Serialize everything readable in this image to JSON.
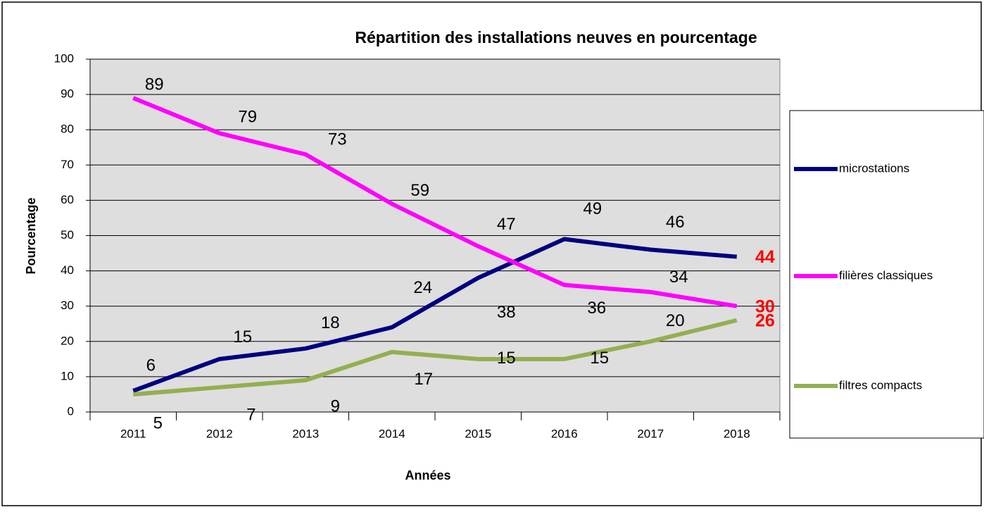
{
  "chart_data": {
    "type": "line",
    "title": "Répartition des installations neuves en pourcentage",
    "x_label": "Années",
    "y_label": "Pourcentage",
    "categories": [
      "2011",
      "2012",
      "2013",
      "2014",
      "2015",
      "2016",
      "2017",
      "2018"
    ],
    "series": [
      {
        "name": "microstations",
        "color": "#000080",
        "values": [
          6,
          15,
          18,
          24,
          38,
          49,
          46,
          44
        ]
      },
      {
        "name": "filières classiques",
        "color": "#ff00ff",
        "values": [
          89,
          79,
          73,
          59,
          47,
          36,
          34,
          30
        ]
      },
      {
        "name": "filtres compacts",
        "color": "#92b050",
        "values": [
          5,
          7,
          9,
          17,
          15,
          15,
          20,
          26
        ]
      }
    ],
    "ylim": [
      0,
      100
    ],
    "yticks": [
      0,
      10,
      20,
      30,
      40,
      50,
      60,
      70,
      80,
      90,
      100
    ],
    "grid": true,
    "legend": "right"
  }
}
